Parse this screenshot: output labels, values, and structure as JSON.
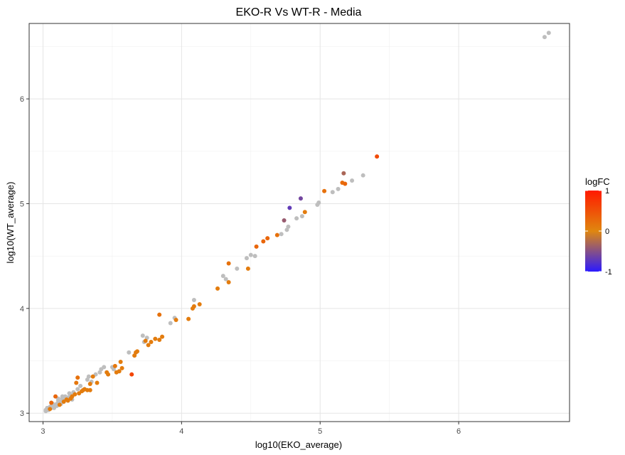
{
  "chart_data": {
    "type": "scatter",
    "title": "EKO-R Vs WT-R - Media",
    "xlabel": "log10(EKO_average)",
    "ylabel": "log10(WT_average)",
    "xlim": [
      2.9,
      6.8
    ],
    "ylim": [
      2.92,
      6.72
    ],
    "x_ticks": [
      3,
      4,
      5,
      6
    ],
    "y_ticks": [
      3,
      4,
      5,
      6
    ],
    "x_tick_labels": [
      "3",
      "4",
      "5",
      "6"
    ],
    "y_tick_labels": [
      "3",
      "4",
      "5",
      "6"
    ],
    "grid": true,
    "colorbar": {
      "title": "logFC",
      "min": -1,
      "max": 1,
      "ticks": [
        1,
        0,
        -1
      ],
      "tick_labels": [
        "1",
        "0",
        "-1"
      ],
      "colors": {
        "low": "#2b1aff",
        "mid": "#e0870f",
        "high": "#ff1a00"
      },
      "placement": "right"
    },
    "na_color": "#bebebe",
    "points": [
      {
        "x": 6.62,
        "y": 6.59,
        "logFC": null
      },
      {
        "x": 6.65,
        "y": 6.63,
        "logFC": null
      },
      {
        "x": 5.41,
        "y": 5.45,
        "logFC": 0.55
      },
      {
        "x": 5.31,
        "y": 5.27,
        "logFC": null
      },
      {
        "x": 5.23,
        "y": 5.22,
        "logFC": null
      },
      {
        "x": 5.17,
        "y": 5.29,
        "logFC": -0.3
      },
      {
        "x": 5.16,
        "y": 5.2,
        "logFC": 0.25
      },
      {
        "x": 5.18,
        "y": 5.19,
        "logFC": 0.3
      },
      {
        "x": 5.13,
        "y": 5.14,
        "logFC": null
      },
      {
        "x": 5.09,
        "y": 5.11,
        "logFC": null
      },
      {
        "x": 5.03,
        "y": 5.12,
        "logFC": 0.2
      },
      {
        "x": 4.99,
        "y": 5.01,
        "logFC": null
      },
      {
        "x": 4.98,
        "y": 4.99,
        "logFC": null
      },
      {
        "x": 4.86,
        "y": 5.05,
        "logFC": -0.6
      },
      {
        "x": 4.89,
        "y": 4.92,
        "logFC": 0.1
      },
      {
        "x": 4.87,
        "y": 4.88,
        "logFC": null
      },
      {
        "x": 4.83,
        "y": 4.86,
        "logFC": null
      },
      {
        "x": 4.78,
        "y": 4.96,
        "logFC": -0.7
      },
      {
        "x": 4.77,
        "y": 4.78,
        "logFC": null
      },
      {
        "x": 4.76,
        "y": 4.75,
        "logFC": null
      },
      {
        "x": 4.74,
        "y": 4.84,
        "logFC": -0.4
      },
      {
        "x": 4.72,
        "y": 4.71,
        "logFC": null
      },
      {
        "x": 4.69,
        "y": 4.7,
        "logFC": 0.2
      },
      {
        "x": 4.62,
        "y": 4.67,
        "logFC": 0.3
      },
      {
        "x": 4.59,
        "y": 4.64,
        "logFC": 0.3
      },
      {
        "x": 4.54,
        "y": 4.59,
        "logFC": 0.3
      },
      {
        "x": 4.53,
        "y": 4.5,
        "logFC": null
      },
      {
        "x": 4.5,
        "y": 4.51,
        "logFC": null
      },
      {
        "x": 4.48,
        "y": 4.38,
        "logFC": 0.1
      },
      {
        "x": 4.47,
        "y": 4.48,
        "logFC": null
      },
      {
        "x": 4.4,
        "y": 4.38,
        "logFC": null
      },
      {
        "x": 4.34,
        "y": 4.43,
        "logFC": 0.2
      },
      {
        "x": 4.34,
        "y": 4.25,
        "logFC": 0.1
      },
      {
        "x": 4.32,
        "y": 4.28,
        "logFC": null
      },
      {
        "x": 4.3,
        "y": 4.31,
        "logFC": null
      },
      {
        "x": 4.26,
        "y": 4.19,
        "logFC": 0.1
      },
      {
        "x": 4.13,
        "y": 4.04,
        "logFC": 0.1
      },
      {
        "x": 4.09,
        "y": 4.08,
        "logFC": null
      },
      {
        "x": 4.09,
        "y": 4.02,
        "logFC": 0.1
      },
      {
        "x": 4.08,
        "y": 4.0,
        "logFC": 0.1
      },
      {
        "x": 4.05,
        "y": 3.9,
        "logFC": 0.1
      },
      {
        "x": 3.96,
        "y": 3.89,
        "logFC": 0.1
      },
      {
        "x": 3.95,
        "y": 3.91,
        "logFC": null
      },
      {
        "x": 3.92,
        "y": 3.86,
        "logFC": null
      },
      {
        "x": 3.84,
        "y": 3.94,
        "logFC": 0.2
      },
      {
        "x": 3.86,
        "y": 3.73,
        "logFC": 0.1
      },
      {
        "x": 3.84,
        "y": 3.7,
        "logFC": 0.1
      },
      {
        "x": 3.81,
        "y": 3.71,
        "logFC": 0.1
      },
      {
        "x": 3.78,
        "y": 3.68,
        "logFC": 0.1
      },
      {
        "x": 3.76,
        "y": 3.65,
        "logFC": 0.1
      },
      {
        "x": 3.74,
        "y": 3.69,
        "logFC": 0.1
      },
      {
        "x": 3.75,
        "y": 3.72,
        "logFC": null
      },
      {
        "x": 3.73,
        "y": 3.68,
        "logFC": null
      },
      {
        "x": 3.72,
        "y": 3.74,
        "logFC": null
      },
      {
        "x": 3.68,
        "y": 3.59,
        "logFC": 0.1
      },
      {
        "x": 3.67,
        "y": 3.58,
        "logFC": 0.1
      },
      {
        "x": 3.66,
        "y": 3.55,
        "logFC": 0.1
      },
      {
        "x": 3.62,
        "y": 3.58,
        "logFC": null
      },
      {
        "x": 3.64,
        "y": 3.37,
        "logFC": 0.6
      },
      {
        "x": 3.56,
        "y": 3.49,
        "logFC": 0.1
      },
      {
        "x": 3.57,
        "y": 3.43,
        "logFC": 0.1
      },
      {
        "x": 3.55,
        "y": 3.4,
        "logFC": 0.1
      },
      {
        "x": 3.53,
        "y": 3.39,
        "logFC": 0.1
      },
      {
        "x": 3.52,
        "y": 3.45,
        "logFC": 0.15
      },
      {
        "x": 3.51,
        "y": 3.42,
        "logFC": null
      },
      {
        "x": 3.5,
        "y": 3.44,
        "logFC": null
      },
      {
        "x": 3.47,
        "y": 3.37,
        "logFC": 0.1
      },
      {
        "x": 3.46,
        "y": 3.39,
        "logFC": 0.1
      },
      {
        "x": 3.44,
        "y": 3.44,
        "logFC": null
      },
      {
        "x": 3.42,
        "y": 3.42,
        "logFC": null
      },
      {
        "x": 3.41,
        "y": 3.39,
        "logFC": null
      },
      {
        "x": 3.39,
        "y": 3.29,
        "logFC": 0.1
      },
      {
        "x": 3.38,
        "y": 3.37,
        "logFC": null
      },
      {
        "x": 3.36,
        "y": 3.35,
        "logFC": 0.1
      },
      {
        "x": 3.35,
        "y": 3.3,
        "logFC": null
      },
      {
        "x": 3.34,
        "y": 3.28,
        "logFC": 0.1
      },
      {
        "x": 3.33,
        "y": 3.35,
        "logFC": null
      },
      {
        "x": 3.32,
        "y": 3.32,
        "logFC": null
      },
      {
        "x": 3.34,
        "y": 3.22,
        "logFC": 0.1
      },
      {
        "x": 3.32,
        "y": 3.22,
        "logFC": 0.1
      },
      {
        "x": 3.3,
        "y": 3.23,
        "logFC": 0.1
      },
      {
        "x": 3.29,
        "y": 3.22,
        "logFC": 0.1
      },
      {
        "x": 3.28,
        "y": 3.21,
        "logFC": 0.1
      },
      {
        "x": 3.26,
        "y": 3.19,
        "logFC": 0.1
      },
      {
        "x": 3.25,
        "y": 3.34,
        "logFC": 0.2
      },
      {
        "x": 3.24,
        "y": 3.29,
        "logFC": 0.15
      },
      {
        "x": 3.27,
        "y": 3.26,
        "logFC": null
      },
      {
        "x": 3.25,
        "y": 3.23,
        "logFC": null
      },
      {
        "x": 3.23,
        "y": 3.18,
        "logFC": 0.1
      },
      {
        "x": 3.22,
        "y": 3.2,
        "logFC": null
      },
      {
        "x": 3.21,
        "y": 3.16,
        "logFC": 0.1
      },
      {
        "x": 3.2,
        "y": 3.17,
        "logFC": null
      },
      {
        "x": 3.19,
        "y": 3.19,
        "logFC": null
      },
      {
        "x": 3.18,
        "y": 3.15,
        "logFC": null
      },
      {
        "x": 3.17,
        "y": 3.13,
        "logFC": 0.1
      },
      {
        "x": 3.16,
        "y": 3.16,
        "logFC": null
      },
      {
        "x": 3.15,
        "y": 3.12,
        "logFC": null
      },
      {
        "x": 3.14,
        "y": 3.14,
        "logFC": null
      },
      {
        "x": 3.13,
        "y": 3.11,
        "logFC": null
      },
      {
        "x": 3.12,
        "y": 3.1,
        "logFC": null
      },
      {
        "x": 3.11,
        "y": 3.12,
        "logFC": null
      },
      {
        "x": 3.1,
        "y": 3.09,
        "logFC": null
      },
      {
        "x": 3.09,
        "y": 3.16,
        "logFC": 0.3
      },
      {
        "x": 3.09,
        "y": 3.07,
        "logFC": null
      },
      {
        "x": 3.08,
        "y": 3.08,
        "logFC": null
      },
      {
        "x": 3.07,
        "y": 3.06,
        "logFC": null
      },
      {
        "x": 3.06,
        "y": 3.1,
        "logFC": 0.3
      },
      {
        "x": 3.06,
        "y": 3.05,
        "logFC": null
      },
      {
        "x": 3.05,
        "y": 3.06,
        "logFC": null
      },
      {
        "x": 3.04,
        "y": 3.04,
        "logFC": null
      },
      {
        "x": 3.03,
        "y": 3.05,
        "logFC": null
      },
      {
        "x": 3.03,
        "y": 3.03,
        "logFC": null
      },
      {
        "x": 3.02,
        "y": 3.03,
        "logFC": null
      },
      {
        "x": 3.02,
        "y": 3.02,
        "logFC": null
      },
      {
        "x": 3.04,
        "y": 3.03,
        "logFC": null
      },
      {
        "x": 3.05,
        "y": 3.04,
        "logFC": 0.1
      },
      {
        "x": 3.08,
        "y": 3.05,
        "logFC": null
      },
      {
        "x": 3.1,
        "y": 3.07,
        "logFC": null
      },
      {
        "x": 3.12,
        "y": 3.08,
        "logFC": 0.1
      },
      {
        "x": 3.13,
        "y": 3.09,
        "logFC": null
      },
      {
        "x": 3.15,
        "y": 3.11,
        "logFC": 0.1
      },
      {
        "x": 3.18,
        "y": 3.12,
        "logFC": 0.1
      },
      {
        "x": 3.2,
        "y": 3.14,
        "logFC": 0.1
      },
      {
        "x": 3.21,
        "y": 3.13,
        "logFC": null
      },
      {
        "x": 3.14,
        "y": 3.16,
        "logFC": null
      },
      {
        "x": 3.11,
        "y": 3.14,
        "logFC": null
      },
      {
        "x": 3.07,
        "y": 3.09,
        "logFC": null
      },
      {
        "x": 3.06,
        "y": 3.07,
        "logFC": null
      }
    ]
  }
}
